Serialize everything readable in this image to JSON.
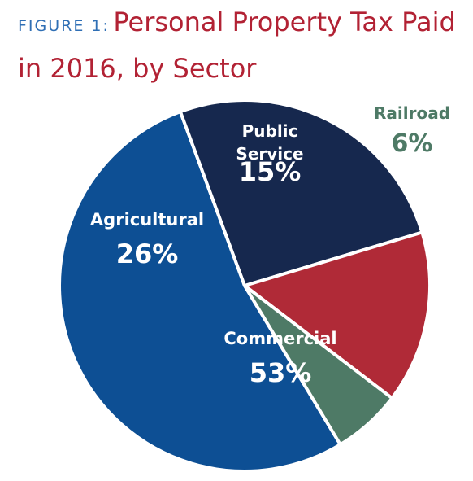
{
  "figure": {
    "label": "FIGURE 1:",
    "title_line1": "Personal Property Tax Paid",
    "title_line2": "in 2016, by Sector"
  },
  "chart_data": {
    "type": "pie",
    "title": "Personal Property Tax Paid in 2016, by Sector",
    "unit": "%",
    "slices": [
      {
        "name": "Commercial",
        "value": 53,
        "value_label": "53%",
        "color": "#0d4f94",
        "label_color": "#ffffff"
      },
      {
        "name": "Agricultural",
        "value": 26,
        "value_label": "26%",
        "color": "#16284e",
        "label_color": "#ffffff"
      },
      {
        "name": "Public Service",
        "name_lines": [
          "Public",
          "Service"
        ],
        "value": 15,
        "value_label": "15%",
        "color": "#b02a37",
        "label_color": "#ffffff"
      },
      {
        "name": "Railroad",
        "value": 6,
        "value_label": "6%",
        "color": "#4e7a66",
        "label_color": "#4e7a66"
      }
    ]
  }
}
